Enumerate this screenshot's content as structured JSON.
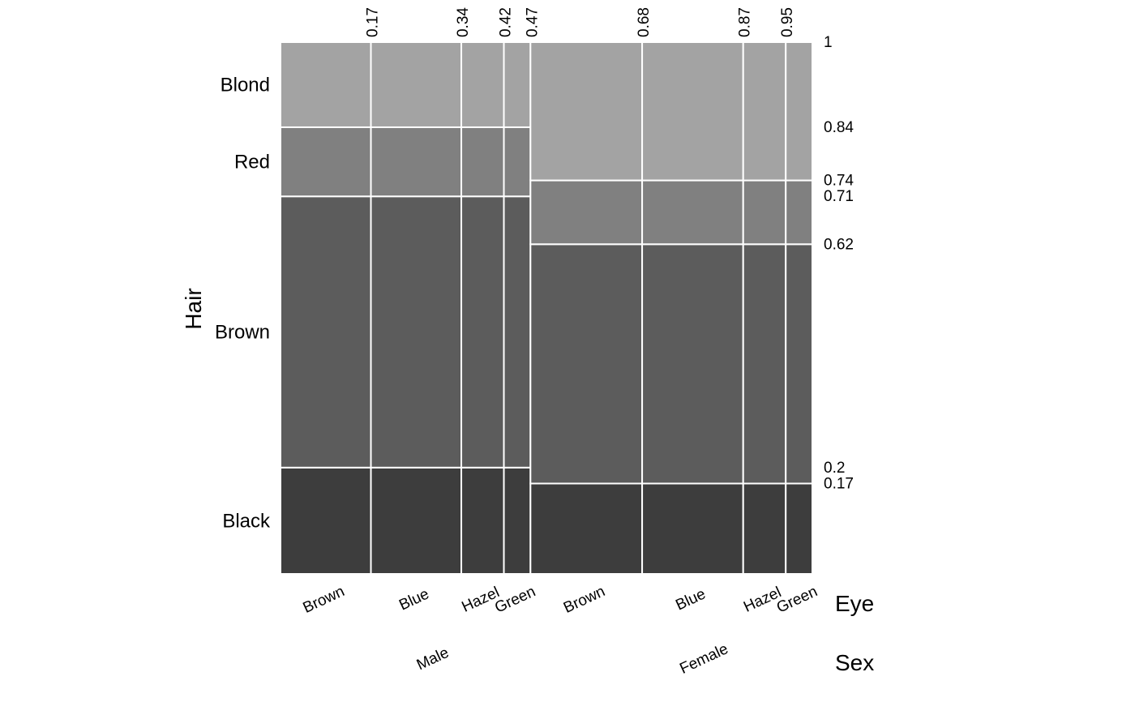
{
  "chart_data": {
    "type": "mosaic",
    "x_variables": [
      "Eye",
      "Sex"
    ],
    "y_variable": "Hair",
    "title": "",
    "axis_titles": {
      "y": "Hair",
      "x_inner": "Eye",
      "x_outer": "Sex"
    },
    "sex_levels": [
      "Male",
      "Female"
    ],
    "eye_levels": [
      "Brown",
      "Blue",
      "Hazel",
      "Green"
    ],
    "hair_levels_bottom_to_top": [
      "Black",
      "Brown",
      "Red",
      "Blond"
    ],
    "hair_colors": {
      "Black": "#3d3d3d",
      "Brown": "#5c5c5c",
      "Red": "#808080",
      "Blond": "#a3a3a3"
    },
    "x_cumulative_ticks": [
      "0.17",
      "0.34",
      "0.42",
      "0.47",
      "0.68",
      "0.87",
      "0.95"
    ],
    "x_cumulative_values": [
      0.17,
      0.34,
      0.42,
      0.47,
      0.68,
      0.87,
      0.95
    ],
    "y_cumulative_ticks": [
      "1",
      "0.84",
      "0.74",
      "0.71",
      "0.62",
      "0.2",
      "0.17"
    ],
    "y_cumulative_values": [
      1,
      0.84,
      0.74,
      0.71,
      0.62,
      0.2,
      0.17
    ],
    "columns": [
      {
        "sex": "Male",
        "eye": "Brown",
        "x_start": 0.0,
        "x_end": 0.17
      },
      {
        "sex": "Male",
        "eye": "Blue",
        "x_start": 0.17,
        "x_end": 0.34
      },
      {
        "sex": "Male",
        "eye": "Hazel",
        "x_start": 0.34,
        "x_end": 0.42
      },
      {
        "sex": "Male",
        "eye": "Green",
        "x_start": 0.42,
        "x_end": 0.47
      },
      {
        "sex": "Female",
        "eye": "Brown",
        "x_start": 0.47,
        "x_end": 0.68
      },
      {
        "sex": "Female",
        "eye": "Blue",
        "x_start": 0.68,
        "x_end": 0.87
      },
      {
        "sex": "Female",
        "eye": "Hazel",
        "x_start": 0.87,
        "x_end": 0.95
      },
      {
        "sex": "Female",
        "eye": "Green",
        "x_start": 0.95,
        "x_end": 1.0
      }
    ],
    "hair_cumulative_by_sex": {
      "Male": {
        "Black": [
          0.0,
          0.2
        ],
        "Brown": [
          0.2,
          0.71
        ],
        "Red": [
          0.71,
          0.84
        ],
        "Blond": [
          0.84,
          1.0
        ]
      },
      "Female": {
        "Black": [
          0.0,
          0.17
        ],
        "Brown": [
          0.17,
          0.62
        ],
        "Red": [
          0.62,
          0.74
        ],
        "Blond": [
          0.74,
          1.0
        ]
      }
    },
    "hair_label_positions": {
      "Blond": 0.92,
      "Red": 0.775,
      "Brown": 0.455,
      "Black": 0.1
    },
    "sex_label_centers": {
      "Male": 0.29,
      "Female": 0.8
    },
    "xlim": [
      0,
      1
    ],
    "ylim": [
      0,
      1
    ],
    "grid": false
  }
}
